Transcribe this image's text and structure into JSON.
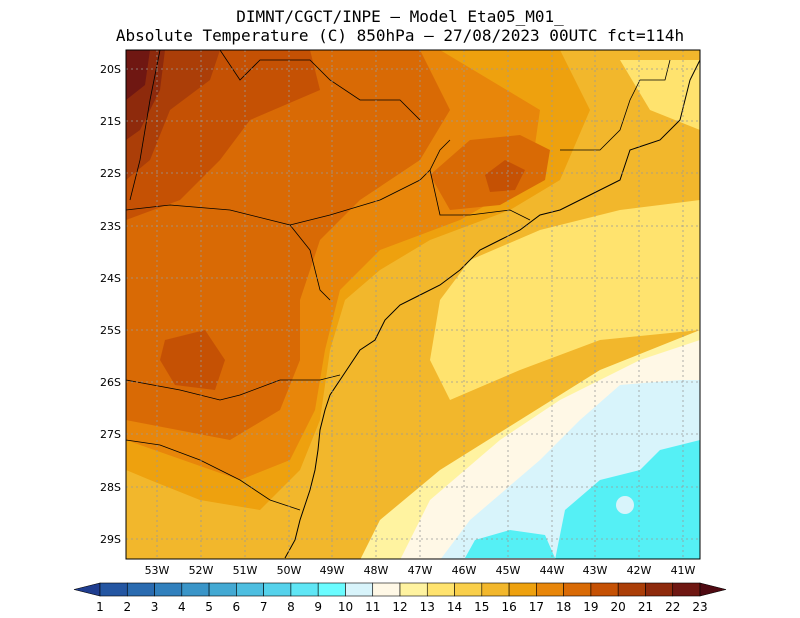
{
  "header": {
    "line1": "DIMNT/CGCT/INPE —  Model Eta05_M01_",
    "line2": "Absolute Temperature (C) 850hPa —  27/08/2023 00UTC fct=114h"
  },
  "map": {
    "lat_labels": [
      "20S",
      "21S",
      "22S",
      "23S",
      "24S",
      "25S",
      "26S",
      "27S",
      "28S",
      "29S"
    ],
    "lon_labels": [
      "53W",
      "52W",
      "51W",
      "50W",
      "49W",
      "48W",
      "47W",
      "46W",
      "45W",
      "44W",
      "43W",
      "42W",
      "41W"
    ]
  },
  "colorbar": {
    "labels": [
      "1",
      "2",
      "3",
      "4",
      "5",
      "6",
      "7",
      "8",
      "9",
      "10",
      "11",
      "12",
      "13",
      "14",
      "15",
      "16",
      "17",
      "18",
      "19",
      "20",
      "21",
      "22",
      "23"
    ],
    "colors": [
      "#1f3d8f",
      "#2456a2",
      "#2a6bb0",
      "#3180bd",
      "#3a95c8",
      "#43a9d3",
      "#4dbee0",
      "#55d2eb",
      "#5fe6f5",
      "#6afcff",
      "#d8f4fb",
      "#fff8e6",
      "#fff3a0",
      "#ffe36e",
      "#f9cf4a",
      "#f2b72c",
      "#eea10e",
      "#e8860a",
      "#d96a05",
      "#c55104",
      "#ab3e08",
      "#8e2a0c",
      "#6f1712",
      "#4f0a12"
    ]
  },
  "theme": {
    "ocean": "#55f0f5",
    "land_boundary": "#000000",
    "grid": "#999999"
  }
}
